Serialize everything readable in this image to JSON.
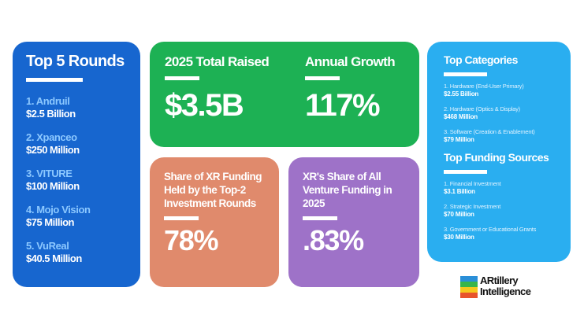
{
  "rounds": {
    "title": "Top 5 Rounds",
    "items": [
      {
        "name": "1. Andruil",
        "amount": "$2.5 Billion"
      },
      {
        "name": "2. Xpanceo",
        "amount": "$250 Million"
      },
      {
        "name": "3. VITURE",
        "amount": "$100 Million"
      },
      {
        "name": "4. Mojo Vision",
        "amount": "$75 Million"
      },
      {
        "name": "5. VuReal",
        "amount": "$40.5 Million"
      }
    ]
  },
  "total": {
    "label": "2025 Total Raised",
    "value": "$3.5B"
  },
  "growth": {
    "label": "Annual Growth",
    "value": "117%"
  },
  "share_top2": {
    "label": "Share of XR Funding Held by the Top-2 Investment Rounds",
    "value": "78%"
  },
  "share_venture": {
    "label": "XR's Share of All Venture Funding in 2025",
    "value": ".83%"
  },
  "categories": {
    "title": "Top Categories",
    "items": [
      {
        "name": "1. Hardware (End-User Primary)",
        "amount": "$2.55 Billion"
      },
      {
        "name": "2. Hardware (Optics & Display)",
        "amount": "$468 Million"
      },
      {
        "name": "3. Software (Creation & Enablement)",
        "amount": "$79 Million"
      }
    ]
  },
  "sources": {
    "title": "Top Funding Sources",
    "items": [
      {
        "name": "1. Financial Investment",
        "amount": "$3.1 Billion"
      },
      {
        "name": "2. Strategic Investment",
        "amount": "$70 Million"
      },
      {
        "name": "3. Government or Educational Grants",
        "amount": "$30 Million"
      }
    ]
  },
  "logo": {
    "line1": "ARtillery",
    "line2": "Intelligence"
  },
  "colors": {
    "rounds_bg": "#1766cf",
    "green_bg": "#1db154",
    "orange_bg": "#e08a6c",
    "purple_bg": "#9e72c8",
    "categories_bg": "#2aaef0"
  }
}
